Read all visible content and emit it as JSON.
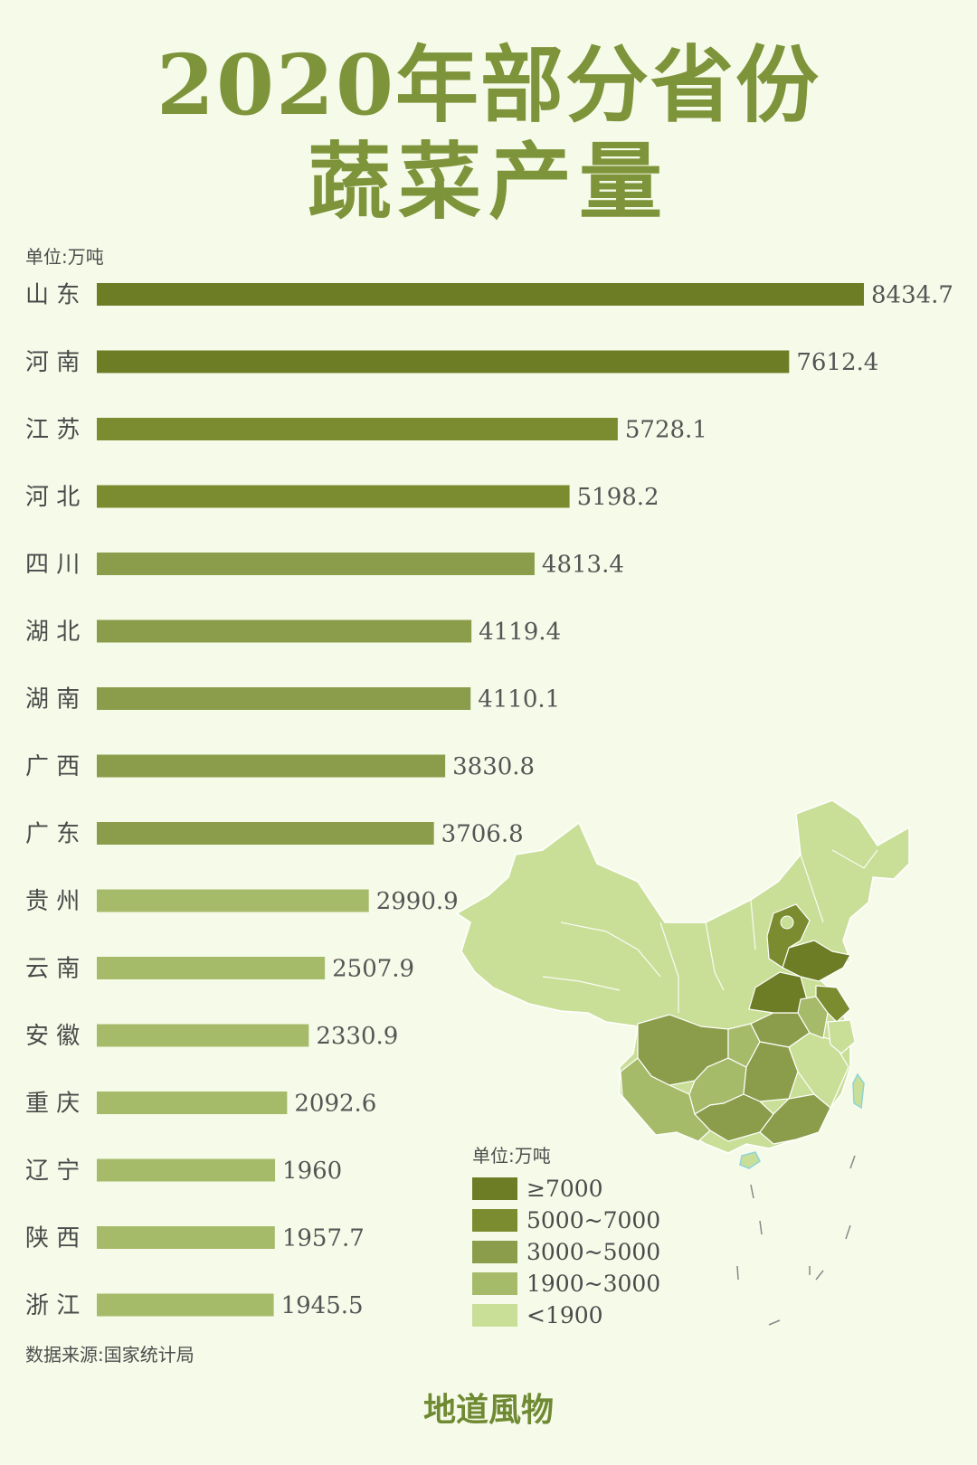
{
  "header": {
    "title_line1": "2020年部分省份",
    "title_line2": "蔬菜产量"
  },
  "unit_label": "单位:万吨",
  "source": "数据来源:国家统计局",
  "brand": "地道風物",
  "colors": {
    "background": "#f6fbe9",
    "title": "#7d943a",
    "tier_7000_plus": "#6c7d25",
    "tier_5000_7000": "#7a8c2f",
    "tier_3000_5000": "#8b9d4a",
    "tier_1900_3000": "#a6bb6a",
    "tier_below_1900": "#c9df98"
  },
  "chart_data": {
    "type": "bar",
    "orientation": "horizontal",
    "categories": [
      "山 东",
      "河 南",
      "江 苏",
      "河 北",
      "四 川",
      "湖 北",
      "湖 南",
      "广 西",
      "广 东",
      "贵 州",
      "云 南",
      "安 徽",
      "重 庆",
      "辽 宁",
      "陕 西",
      "浙 江"
    ],
    "values": [
      8434.7,
      7612.4,
      5728.1,
      5198.2,
      4813.4,
      4119.4,
      4110.1,
      3830.8,
      3706.8,
      2990.9,
      2507.9,
      2330.9,
      2092.6,
      1960,
      1957.7,
      1945.5
    ],
    "value_labels": [
      "8434.7",
      "7612.4",
      "5728.1",
      "5198.2",
      "4813.4",
      "4119.4",
      "4110.1",
      "3830.8",
      "3706.8",
      "2990.9",
      "2507.9",
      "2330.9",
      "2092.6",
      "1960",
      "1957.7",
      "1945.5"
    ],
    "xlim": [
      0,
      8434.7
    ],
    "ylabel": "单位:万吨",
    "grid": false
  },
  "map": {
    "legend_title": "单位:万吨",
    "legend": [
      {
        "label": "≥7000",
        "color": "#6c7d25"
      },
      {
        "label": "5000~7000",
        "color": "#7a8c2f"
      },
      {
        "label": "3000~5000",
        "color": "#8b9d4a"
      },
      {
        "label": "1900~3000",
        "color": "#a6bb6a"
      },
      {
        "label": "<1900",
        "color": "#c9df98"
      }
    ]
  }
}
